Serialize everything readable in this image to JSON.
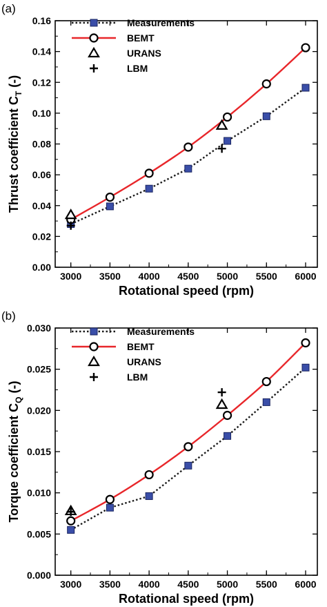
{
  "colors": {
    "measurements": "#1a1a1a",
    "measurement_marker_fill": "#3a4ea8",
    "bemt": "#e8262a",
    "axis": "#000000"
  },
  "chart_data": [
    {
      "type": "line",
      "panel_label": "(a)",
      "xlabel": "Rotational speed (rpm)",
      "ylabel": "Thrust coefficient C",
      "ylabel_subscript": "T",
      "ylabel_suffix": " (-)",
      "xlim": [
        2800,
        6150
      ],
      "ylim": [
        0,
        0.16
      ],
      "xticks": [
        3000,
        3500,
        4000,
        4500,
        5000,
        5500,
        6000
      ],
      "xtick_labels": [
        "3000",
        "3500",
        "4000",
        "4500",
        "5000",
        "5500",
        "6000"
      ],
      "yticks": [
        0,
        0.02,
        0.04,
        0.06,
        0.08,
        0.1,
        0.12,
        0.14,
        0.16
      ],
      "ytick_labels": [
        "0.00",
        "0.02",
        "0.04",
        "0.06",
        "0.08",
        "0.10",
        "0.12",
        "0.14",
        "0.16"
      ],
      "grid": false,
      "legend_position": "top-left",
      "series": [
        {
          "name": "Measurements",
          "style": "dotted-square",
          "x": [
            3000,
            3500,
            4000,
            4500,
            5000,
            5500,
            6000
          ],
          "y": [
            0.028,
            0.0395,
            0.051,
            0.064,
            0.082,
            0.098,
            0.1165
          ]
        },
        {
          "name": "BEMT",
          "style": "solid-circle",
          "x": [
            3000,
            3500,
            4000,
            4500,
            5000,
            5500,
            6000
          ],
          "y": [
            0.031,
            0.0455,
            0.061,
            0.078,
            0.0975,
            0.119,
            0.1425
          ]
        },
        {
          "name": "URANS",
          "style": "triangle",
          "x": [
            3000,
            4930
          ],
          "y": [
            0.034,
            0.092
          ]
        },
        {
          "name": "LBM",
          "style": "plus",
          "x": [
            3000,
            4930
          ],
          "y": [
            0.027,
            0.077
          ]
        }
      ]
    },
    {
      "type": "line",
      "panel_label": "(b)",
      "xlabel": "Rotational speed (rpm)",
      "ylabel": "Torque coefficient C",
      "ylabel_subscript": "Q",
      "ylabel_suffix": " (-)",
      "xlim": [
        2800,
        6150
      ],
      "ylim": [
        0,
        0.03
      ],
      "xticks": [
        3000,
        3500,
        4000,
        4500,
        5000,
        5500,
        6000
      ],
      "xtick_labels": [
        "3000",
        "3500",
        "4000",
        "4500",
        "5000",
        "5500",
        "6000"
      ],
      "yticks": [
        0,
        0.005,
        0.01,
        0.015,
        0.02,
        0.025,
        0.03
      ],
      "ytick_labels": [
        "0.000",
        "0.005",
        "0.010",
        "0.015",
        "0.020",
        "0.025",
        "0.030"
      ],
      "grid": false,
      "legend_position": "top-left",
      "series": [
        {
          "name": "Measurements",
          "style": "dotted-square",
          "x": [
            3000,
            3500,
            4000,
            4500,
            5000,
            5500,
            6000
          ],
          "y": [
            0.0055,
            0.0082,
            0.0096,
            0.0133,
            0.0169,
            0.021,
            0.0252
          ]
        },
        {
          "name": "BEMT",
          "style": "solid-circle",
          "x": [
            3000,
            3500,
            4000,
            4500,
            5000,
            5500,
            6000
          ],
          "y": [
            0.0066,
            0.0092,
            0.0122,
            0.0156,
            0.0194,
            0.0235,
            0.0282
          ]
        },
        {
          "name": "URANS",
          "style": "triangle",
          "x": [
            3000,
            4930
          ],
          "y": [
            0.0078,
            0.0207
          ]
        },
        {
          "name": "LBM",
          "style": "plus",
          "x": [
            3000,
            4930
          ],
          "y": [
            0.0077,
            0.0222
          ]
        }
      ]
    }
  ]
}
